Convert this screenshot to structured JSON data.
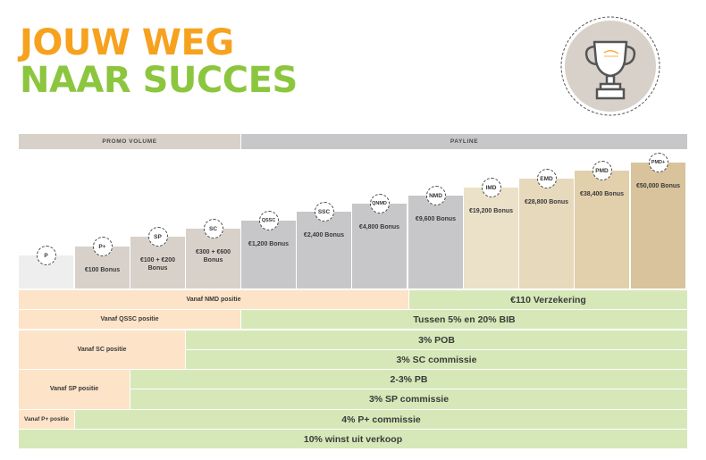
{
  "title": {
    "line1": "JOUW WEG",
    "line2": "NAAR SUCCES"
  },
  "colors": {
    "orange": "#f6a21e",
    "green": "#8cc63f",
    "peach": "#fde3c7",
    "light_green": "#d6e8b8"
  },
  "trophy": {
    "icon": "trophy-icon"
  },
  "headers": {
    "promo_volume": "PROMO VOLUME",
    "payline": "PAYLINE"
  },
  "levels": [
    {
      "badge": "P",
      "bonus": ""
    },
    {
      "badge": "P+",
      "bonus": "€100 Bonus"
    },
    {
      "badge": "SP",
      "bonus": "€100 + €200 Bonus"
    },
    {
      "badge": "SC",
      "bonus": "€300 + €600 Bonus"
    },
    {
      "badge": "QSSC",
      "bonus": "€1,200 Bonus"
    },
    {
      "badge": "SSC",
      "bonus": "€2,400 Bonus"
    },
    {
      "badge": "QNMD",
      "bonus": "€4,800 Bonus"
    },
    {
      "badge": "NMD",
      "bonus": "€9,600 Bonus"
    },
    {
      "badge": "IMD",
      "bonus": "€19,200 Bonus"
    },
    {
      "badge": "EMD",
      "bonus": "€28,800 Bonus"
    },
    {
      "badge": "PMD",
      "bonus": "€38,400 Bonus"
    },
    {
      "badge": "PMD+",
      "bonus": "€50,000 Bonus"
    }
  ],
  "benefits": {
    "vanaf_nmd": "Vanaf NMD positie",
    "verzekering": "€110 Verzekering",
    "vanaf_qssc": "Vanaf QSSC positie",
    "bib": "Tussen 5% en 20% BIB",
    "vanaf_sc": "Vanaf SC positie",
    "pob": "3% POB",
    "sc_commissie": "3% SC commissie",
    "vanaf_sp": "Vanaf SP positie",
    "pb": "2-3% PB",
    "sp_commissie": "3% SP commissie",
    "vanaf_pplus": "Vanaf P+ positie",
    "pplus_commissie": "4% P+ commissie",
    "winst": "10% winst uit verkoop"
  }
}
